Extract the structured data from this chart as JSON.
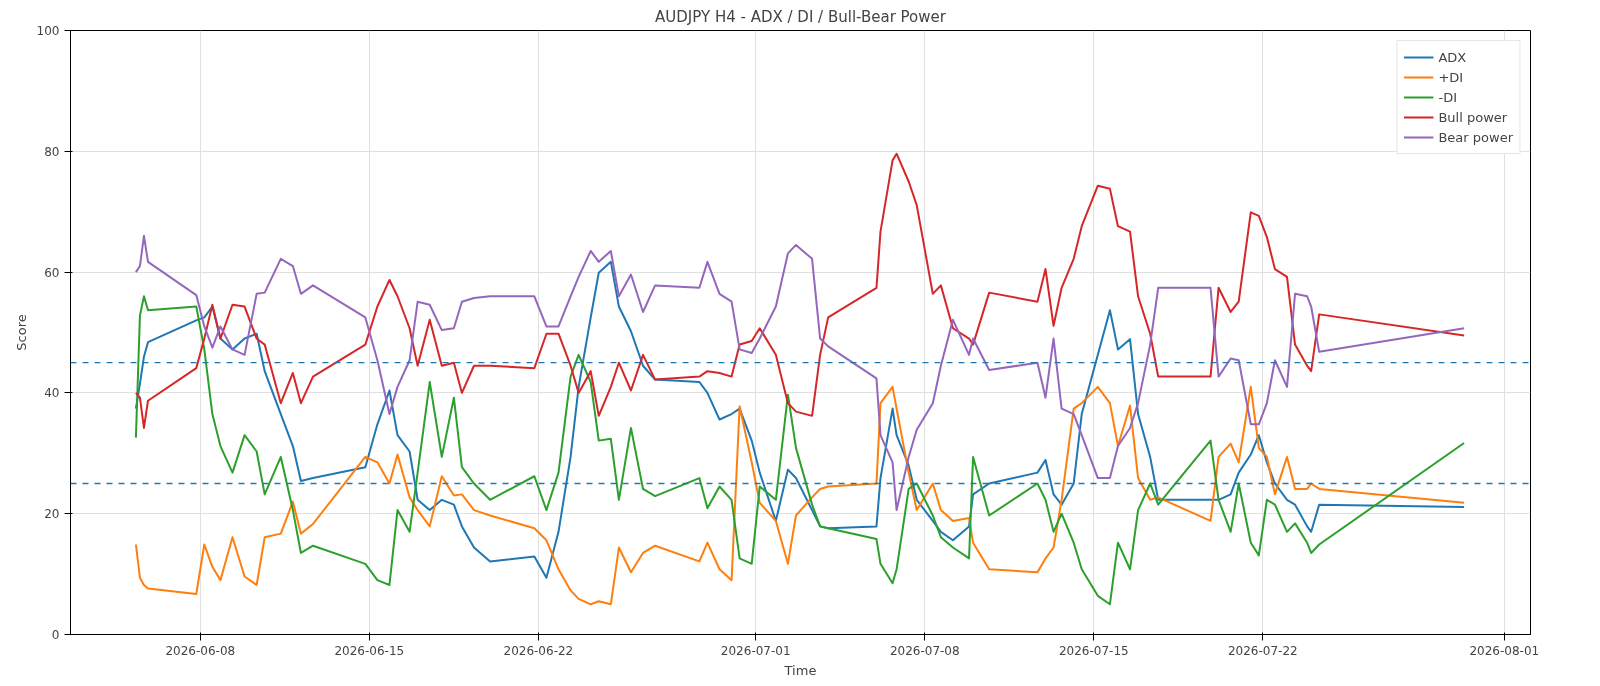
{
  "chart_data": {
    "type": "line",
    "title": "AUDJPY H4 - ADX / DI / Bull-Bear Power",
    "xlabel": "Time",
    "ylabel": "Score",
    "x": [
      "2026-06-05T08:00",
      "2026-06-05T12:00",
      "2026-06-05T16:00",
      "2026-06-05T20:00",
      "2026-06-07T20:00",
      "2026-06-08T04:00",
      "2026-06-08T12:00",
      "2026-06-08T20:00",
      "2026-06-09T08:00",
      "2026-06-09T20:00",
      "2026-06-10T08:00",
      "2026-06-10T16:00",
      "2026-06-11T08:00",
      "2026-06-11T20:00",
      "2026-06-12T04:00",
      "2026-06-12T16:00",
      "2026-06-14T20:00",
      "2026-06-15T08:00",
      "2026-06-15T20:00",
      "2026-06-16T04:00",
      "2026-06-16T16:00",
      "2026-06-17T00:00",
      "2026-06-17T12:00",
      "2026-06-18T00:00",
      "2026-06-18T12:00",
      "2026-06-18T20:00",
      "2026-06-19T08:00",
      "2026-06-20T00:00",
      "2026-06-21T20:00",
      "2026-06-22T08:00",
      "2026-06-22T20:00",
      "2026-06-23T08:00",
      "2026-06-23T16:00",
      "2026-06-24T04:00",
      "2026-06-24T12:00",
      "2026-06-25T00:00",
      "2026-06-25T08:00",
      "2026-06-25T20:00",
      "2026-06-26T08:00",
      "2026-06-26T20:00",
      "2026-06-28T16:00",
      "2026-06-29T00:00",
      "2026-06-29T12:00",
      "2026-06-30T00:00",
      "2026-06-30T08:00",
      "2026-06-30T20:00",
      "2026-07-01T04:00",
      "2026-07-01T20:00",
      "2026-07-02T08:00",
      "2026-07-02T16:00",
      "2026-07-03T08:00",
      "2026-07-03T16:00",
      "2026-07-04T00:00",
      "2026-07-06T00:00",
      "2026-07-06T04:00",
      "2026-07-06T16:00",
      "2026-07-06T20:00",
      "2026-07-07T08:00",
      "2026-07-07T16:00",
      "2026-07-08T08:00",
      "2026-07-08T16:00",
      "2026-07-09T04:00",
      "2026-07-09T20:00",
      "2026-07-10T00:00",
      "2026-07-10T16:00",
      "2026-07-12T16:00",
      "2026-07-13T00:00",
      "2026-07-13T08:00",
      "2026-07-13T16:00",
      "2026-07-14T04:00",
      "2026-07-14T12:00",
      "2026-07-15T04:00",
      "2026-07-15T16:00",
      "2026-07-16T00:00",
      "2026-07-16T12:00",
      "2026-07-16T20:00",
      "2026-07-17T08:00",
      "2026-07-17T16:00",
      "2026-07-19T20:00",
      "2026-07-20T04:00",
      "2026-07-20T16:00",
      "2026-07-21T00:00",
      "2026-07-21T12:00",
      "2026-07-21T20:00",
      "2026-07-22T04:00",
      "2026-07-22T12:00",
      "2026-07-23T00:00",
      "2026-07-23T08:00",
      "2026-07-23T20:00",
      "2026-07-24T00:00",
      "2026-07-24T08:00",
      "2026-07-30T08:00"
    ],
    "series": [
      {
        "name": "ADX",
        "color": "#1f77b4",
        "values": [
          37.4,
          41.5,
          46,
          48.4,
          52,
          52.5,
          54.3,
          49,
          47.2,
          49,
          49.8,
          43.6,
          36.5,
          31.2,
          25.4,
          25.9,
          27.7,
          34.8,
          40.4,
          33,
          30.3,
          22.3,
          20.6,
          22.3,
          21.5,
          17.9,
          14.4,
          12.1,
          12.9,
          9.4,
          17,
          29.4,
          41,
          52.5,
          59.9,
          61.7,
          54.3,
          50.2,
          44.5,
          42.2,
          41.8,
          40,
          35.6,
          36.5,
          37.4,
          32.1,
          26.8,
          18.8,
          27.3,
          25.9,
          20.6,
          17.9,
          17.6,
          17.9,
          25.9,
          37.4,
          33,
          28,
          22.3,
          18.8,
          17,
          15.6,
          17.9,
          23.2,
          25,
          26.8,
          28.9,
          23.2,
          21.5,
          25,
          36.5,
          46.3,
          53.7,
          47.2,
          48.9,
          36.5,
          29.4,
          22.3,
          22.3,
          22.3,
          23.2,
          26.8,
          29.8,
          33,
          28.5,
          25,
          22.3,
          21.5,
          17.9,
          17,
          21.5,
          21.1
        ]
      },
      {
        "name": "+DI",
        "color": "#ff7f0e",
        "values": [
          14.9,
          9.4,
          8.2,
          7.6,
          6.7,
          14.9,
          11.2,
          9,
          16.1,
          9.6,
          8.2,
          16.1,
          16.7,
          22,
          16.7,
          18.3,
          29.4,
          28.5,
          25,
          29.8,
          22.7,
          20.6,
          17.9,
          26.2,
          23,
          23.2,
          20.6,
          19.7,
          17.6,
          15.6,
          10.8,
          7.3,
          5.9,
          5,
          5.5,
          5,
          14.4,
          10.3,
          13.5,
          14.7,
          12.1,
          15.2,
          10.8,
          9,
          37.8,
          28.5,
          21.8,
          18.8,
          11.7,
          19.7,
          22.7,
          24.1,
          24.5,
          25,
          38.3,
          41,
          37.4,
          26.8,
          20.6,
          25,
          20.6,
          18.8,
          19.3,
          15.2,
          10.8,
          10.3,
          12.6,
          14.4,
          22.3,
          37.4,
          38.3,
          41,
          38.3,
          31.2,
          37.9,
          25.9,
          22.3,
          22.7,
          18.8,
          29.4,
          31.6,
          28.5,
          41,
          30.9,
          29.4,
          23.2,
          29.4,
          24.1,
          24.1,
          25,
          24.1,
          21.8
        ]
      },
      {
        "name": "-DI",
        "color": "#2ca02c",
        "values": [
          32.6,
          52.8,
          56,
          53.7,
          54.3,
          47.2,
          36.5,
          31.2,
          26.8,
          33,
          30.3,
          23.2,
          29.4,
          20.6,
          13.5,
          14.7,
          11.7,
          9,
          8.2,
          20.6,
          17,
          26.8,
          41.8,
          29.4,
          39.2,
          27.7,
          25,
          22.3,
          26.2,
          20.6,
          26.8,
          42.7,
          46.3,
          41.8,
          32.1,
          32.4,
          22.3,
          34.2,
          24.1,
          22.9,
          25.9,
          20.9,
          24.5,
          22.3,
          12.6,
          11.7,
          24.5,
          22.3,
          39.7,
          30.9,
          21.5,
          17.9,
          17.6,
          15.8,
          11.7,
          8.5,
          10.8,
          24.1,
          25,
          19.7,
          16.1,
          14.4,
          12.6,
          29.4,
          19.7,
          25,
          22.3,
          17,
          20,
          15.2,
          10.8,
          6.4,
          5,
          15.2,
          10.8,
          20.6,
          25,
          21.5,
          32.1,
          22.3,
          17,
          25,
          15.2,
          13.1,
          22.3,
          21.5,
          17,
          18.4,
          15.2,
          13.5,
          14.9,
          31.7
        ]
      },
      {
        "name": "Bull power",
        "color": "#d62728",
        "values": [
          40,
          39.2,
          34.2,
          38.7,
          44.1,
          49,
          54.6,
          49,
          54.6,
          54.3,
          49,
          48,
          38.3,
          43.3,
          38.3,
          42.7,
          48,
          54.3,
          58.7,
          56,
          50.7,
          44.5,
          52.1,
          44.5,
          45,
          40,
          44.5,
          44.5,
          44.1,
          49.8,
          49.8,
          44.5,
          40,
          43.6,
          36.2,
          41,
          45,
          40.4,
          46.3,
          42.2,
          42.7,
          43.6,
          43.3,
          42.7,
          48,
          48.6,
          50.7,
          46.3,
          38.3,
          36.9,
          36.2,
          46.3,
          52.5,
          57.4,
          66.7,
          78.5,
          79.6,
          75,
          71.1,
          56.4,
          57.8,
          50.7,
          49,
          48,
          56.6,
          55.1,
          60.5,
          51.1,
          57.4,
          62.2,
          67.6,
          74.3,
          73.8,
          67.6,
          66.7,
          56,
          49.8,
          42.7,
          42.7,
          57.4,
          53.4,
          55.1,
          69.9,
          69.3,
          65.8,
          60.5,
          59.2,
          48,
          44.5,
          43.6,
          53,
          49.5
        ]
      },
      {
        "name": "Bear power",
        "color": "#9467bd",
        "values": [
          60,
          61,
          66,
          61.7,
          56.2,
          51,
          47.5,
          51,
          47.2,
          46.3,
          56.4,
          56.6,
          62.2,
          61,
          56.4,
          57.8,
          52.5,
          45.4,
          36.5,
          41,
          45.4,
          55.1,
          54.6,
          50.4,
          50.7,
          55.1,
          55.7,
          56,
          56,
          51,
          51,
          56,
          59.2,
          63.5,
          61.7,
          63.5,
          56,
          59.6,
          53.4,
          57.8,
          57.4,
          61.7,
          56.4,
          55.1,
          47.2,
          46.6,
          49,
          54.3,
          63.1,
          64.5,
          62.2,
          49,
          47.7,
          42.4,
          33,
          28.5,
          20.6,
          29.4,
          33.9,
          38.3,
          44.5,
          52.1,
          46.3,
          49,
          43.8,
          45,
          39.2,
          49,
          37.4,
          36.5,
          33,
          25.9,
          25.9,
          31.2,
          34.2,
          38.3,
          48,
          57.4,
          57.4,
          42.7,
          45.7,
          45.4,
          34.8,
          34.8,
          38.3,
          45.4,
          41,
          56.4,
          56,
          54.3,
          46.8,
          50.7
        ]
      }
    ],
    "xlim": [
      "2026-06-02T15:00",
      "2026-08-02T02:00"
    ],
    "xticks": [
      "2026-06-08",
      "2026-06-15",
      "2026-06-22",
      "2026-07-01",
      "2026-07-08",
      "2026-07-15",
      "2026-07-22",
      "2026-08-01"
    ],
    "ylim": [
      0,
      100
    ],
    "yticks": [
      0,
      20,
      40,
      60,
      80,
      100
    ],
    "ref_lines": [
      {
        "axis": "y",
        "value": 45,
        "color": "#1f77b4",
        "line_style": "dashed"
      },
      {
        "axis": "y",
        "value": 25,
        "color": "#1f77b4",
        "line_style": "dashed"
      }
    ],
    "grid": true,
    "legend": "top right",
    "line_style": "solid"
  }
}
